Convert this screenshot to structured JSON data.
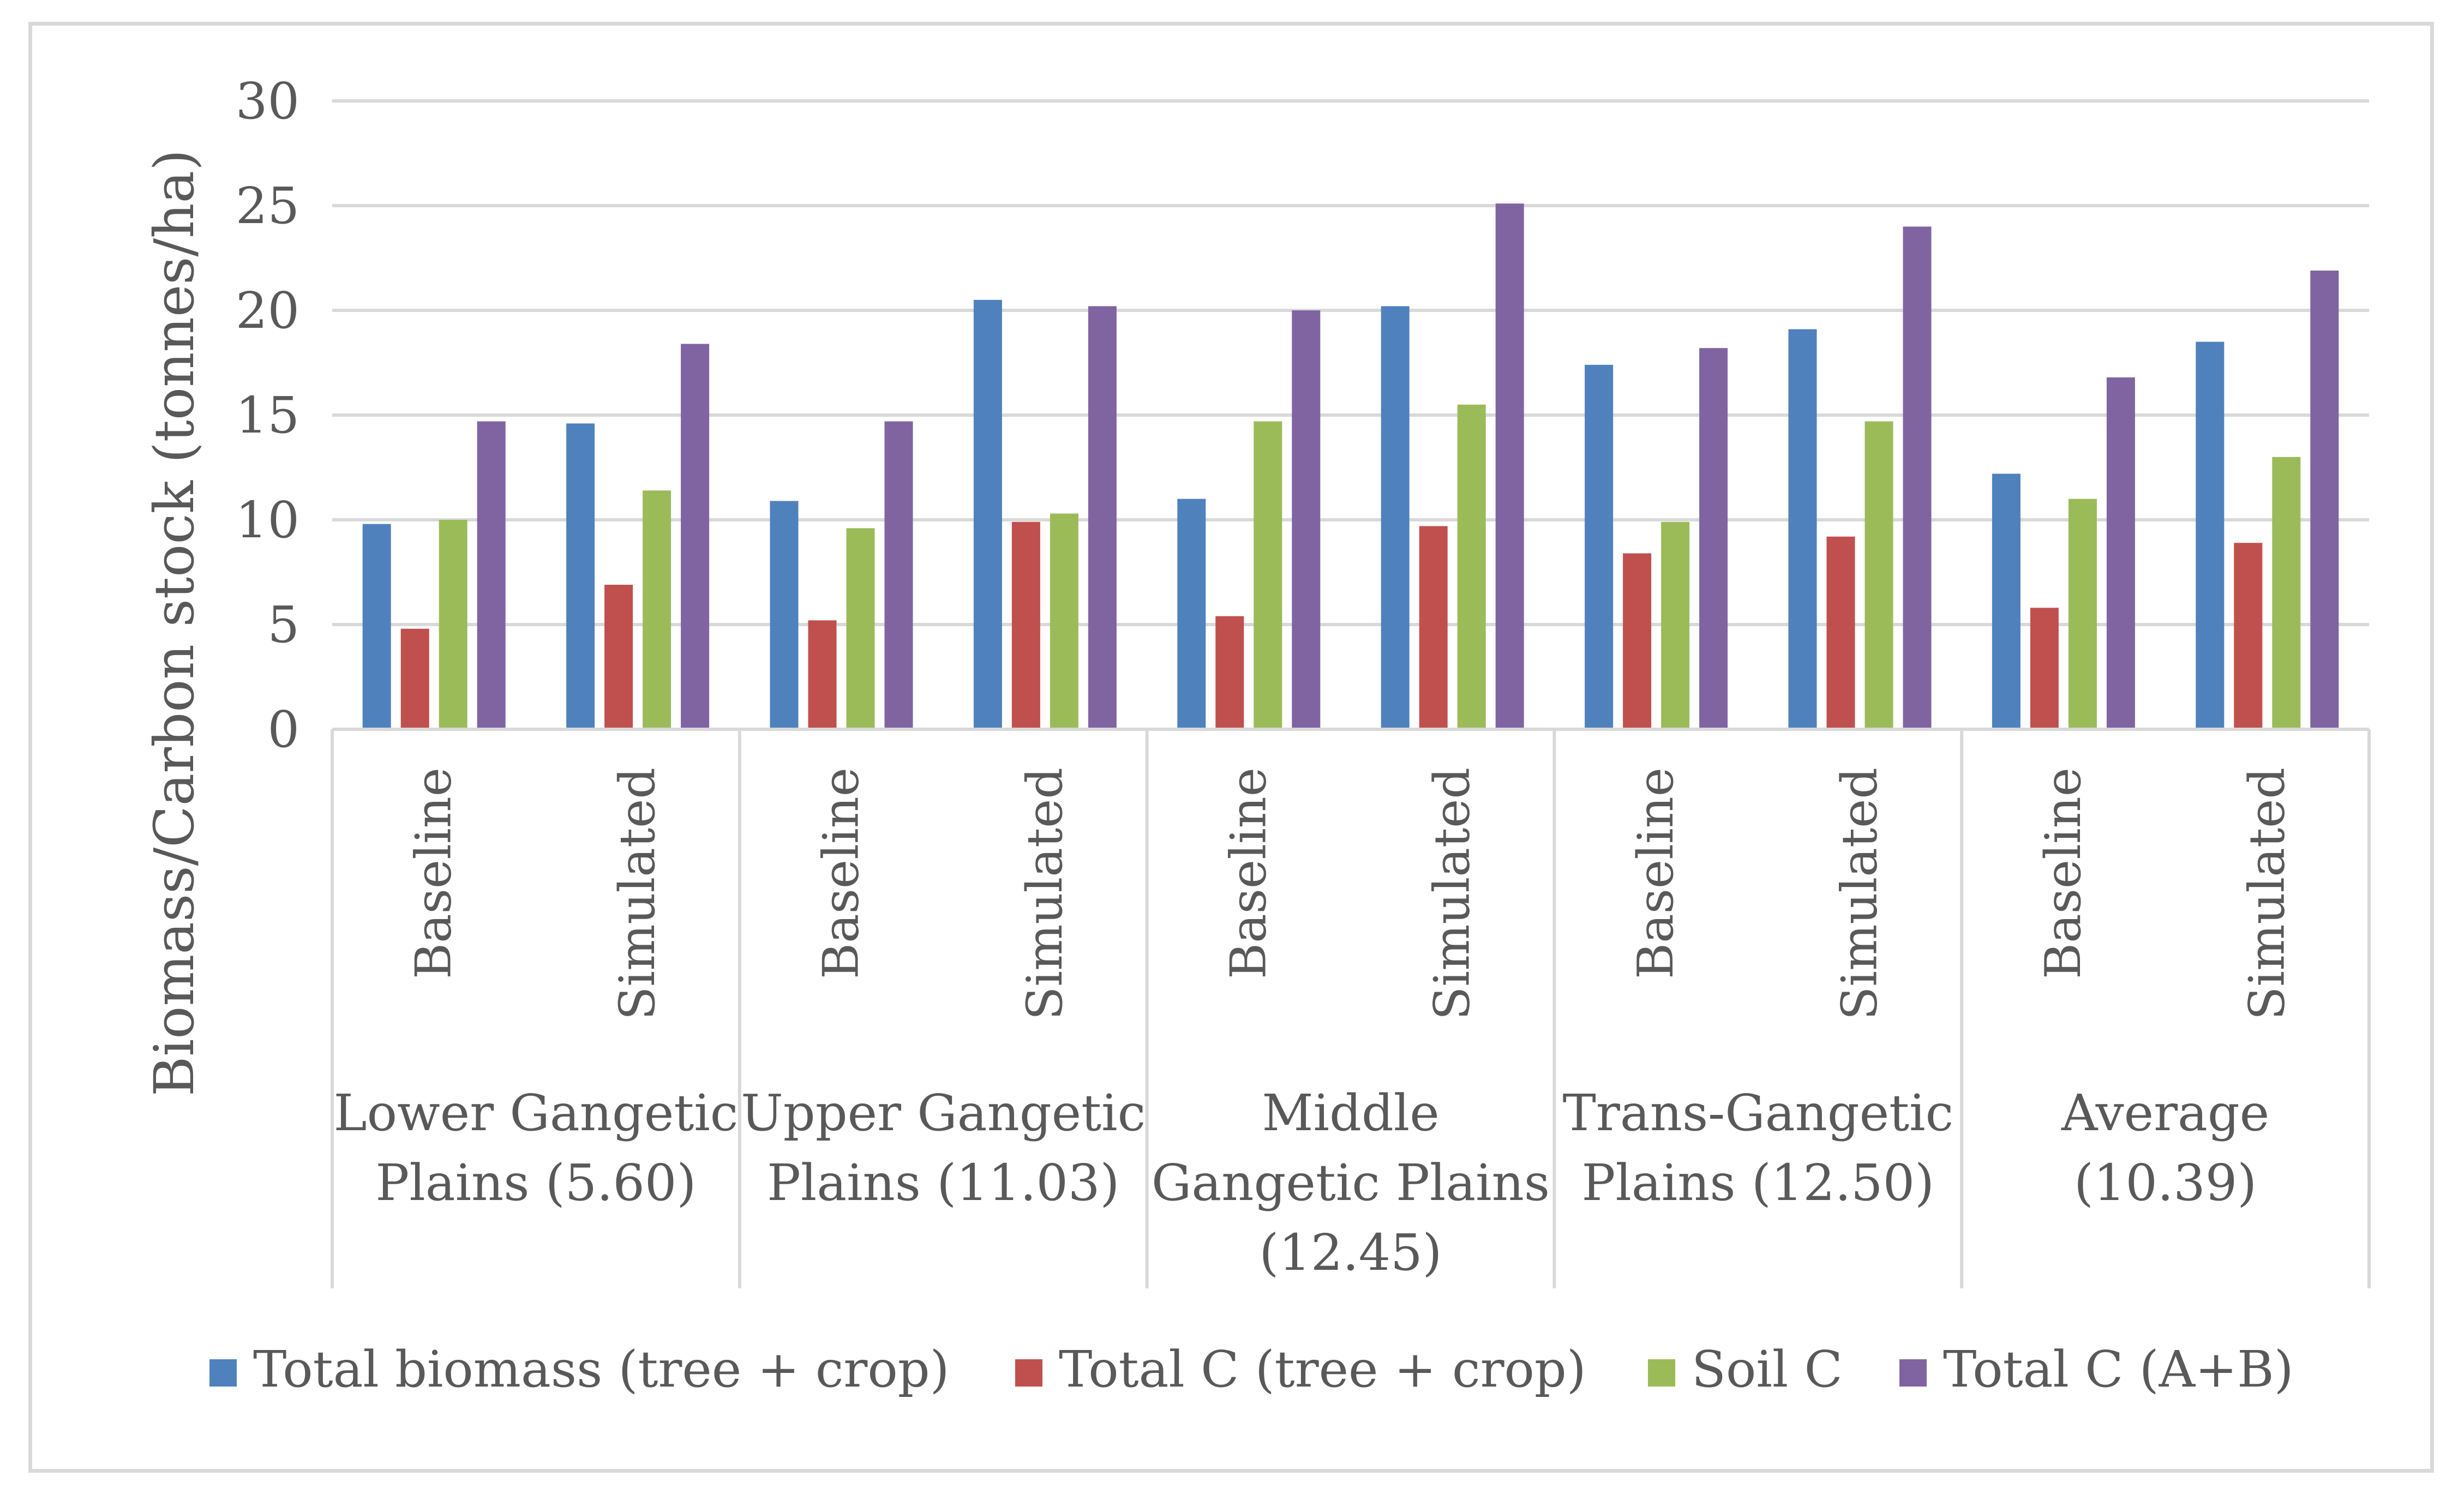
{
  "chart_data": {
    "type": "bar",
    "title": "",
    "ylabel": "Biomass/Carbon stock (tonnes/ha)",
    "xlabel": "",
    "ylim": [
      0,
      30
    ],
    "yticks": [
      0,
      5,
      10,
      15,
      20,
      25,
      30
    ],
    "grid": true,
    "legend_position": "bottom",
    "groups": [
      {
        "label_lines": [
          "Lower Gangetic",
          "Plains (5.60)"
        ],
        "categories": [
          "Baseline",
          "Simulated"
        ]
      },
      {
        "label_lines": [
          "Upper Gangetic",
          "Plains (11.03)"
        ],
        "categories": [
          "Baseline",
          "Simulated"
        ]
      },
      {
        "label_lines": [
          "Middle",
          "Gangetic Plains",
          "(12.45)"
        ],
        "categories": [
          "Baseline",
          "Simulated"
        ]
      },
      {
        "label_lines": [
          "Trans-Gangetic",
          "Plains (12.50)"
        ],
        "categories": [
          "Baseline",
          "Simulated"
        ]
      },
      {
        "label_lines": [
          "Average",
          "(10.39)"
        ],
        "categories": [
          "Baseline",
          "Simulated"
        ]
      }
    ],
    "series": [
      {
        "name": "Total biomass  (tree + crop)",
        "color": "#4f81bd",
        "values": [
          9.8,
          14.6,
          10.9,
          20.5,
          11.0,
          20.2,
          17.4,
          19.1,
          12.2,
          18.5
        ]
      },
      {
        "name": "Total C  (tree + crop)",
        "color": "#c0504d",
        "values": [
          4.8,
          6.9,
          5.2,
          9.9,
          5.4,
          9.7,
          8.4,
          9.2,
          5.8,
          8.9
        ]
      },
      {
        "name": "Soil C",
        "color": "#9bbb59",
        "values": [
          10.0,
          11.4,
          9.6,
          10.3,
          14.7,
          15.5,
          9.9,
          14.7,
          11.0,
          13.0
        ]
      },
      {
        "name": "Total C (A+B)",
        "color": "#8064a2",
        "values": [
          14.7,
          18.4,
          14.7,
          20.2,
          20.0,
          25.1,
          18.2,
          24.0,
          16.8,
          21.9
        ]
      }
    ]
  }
}
